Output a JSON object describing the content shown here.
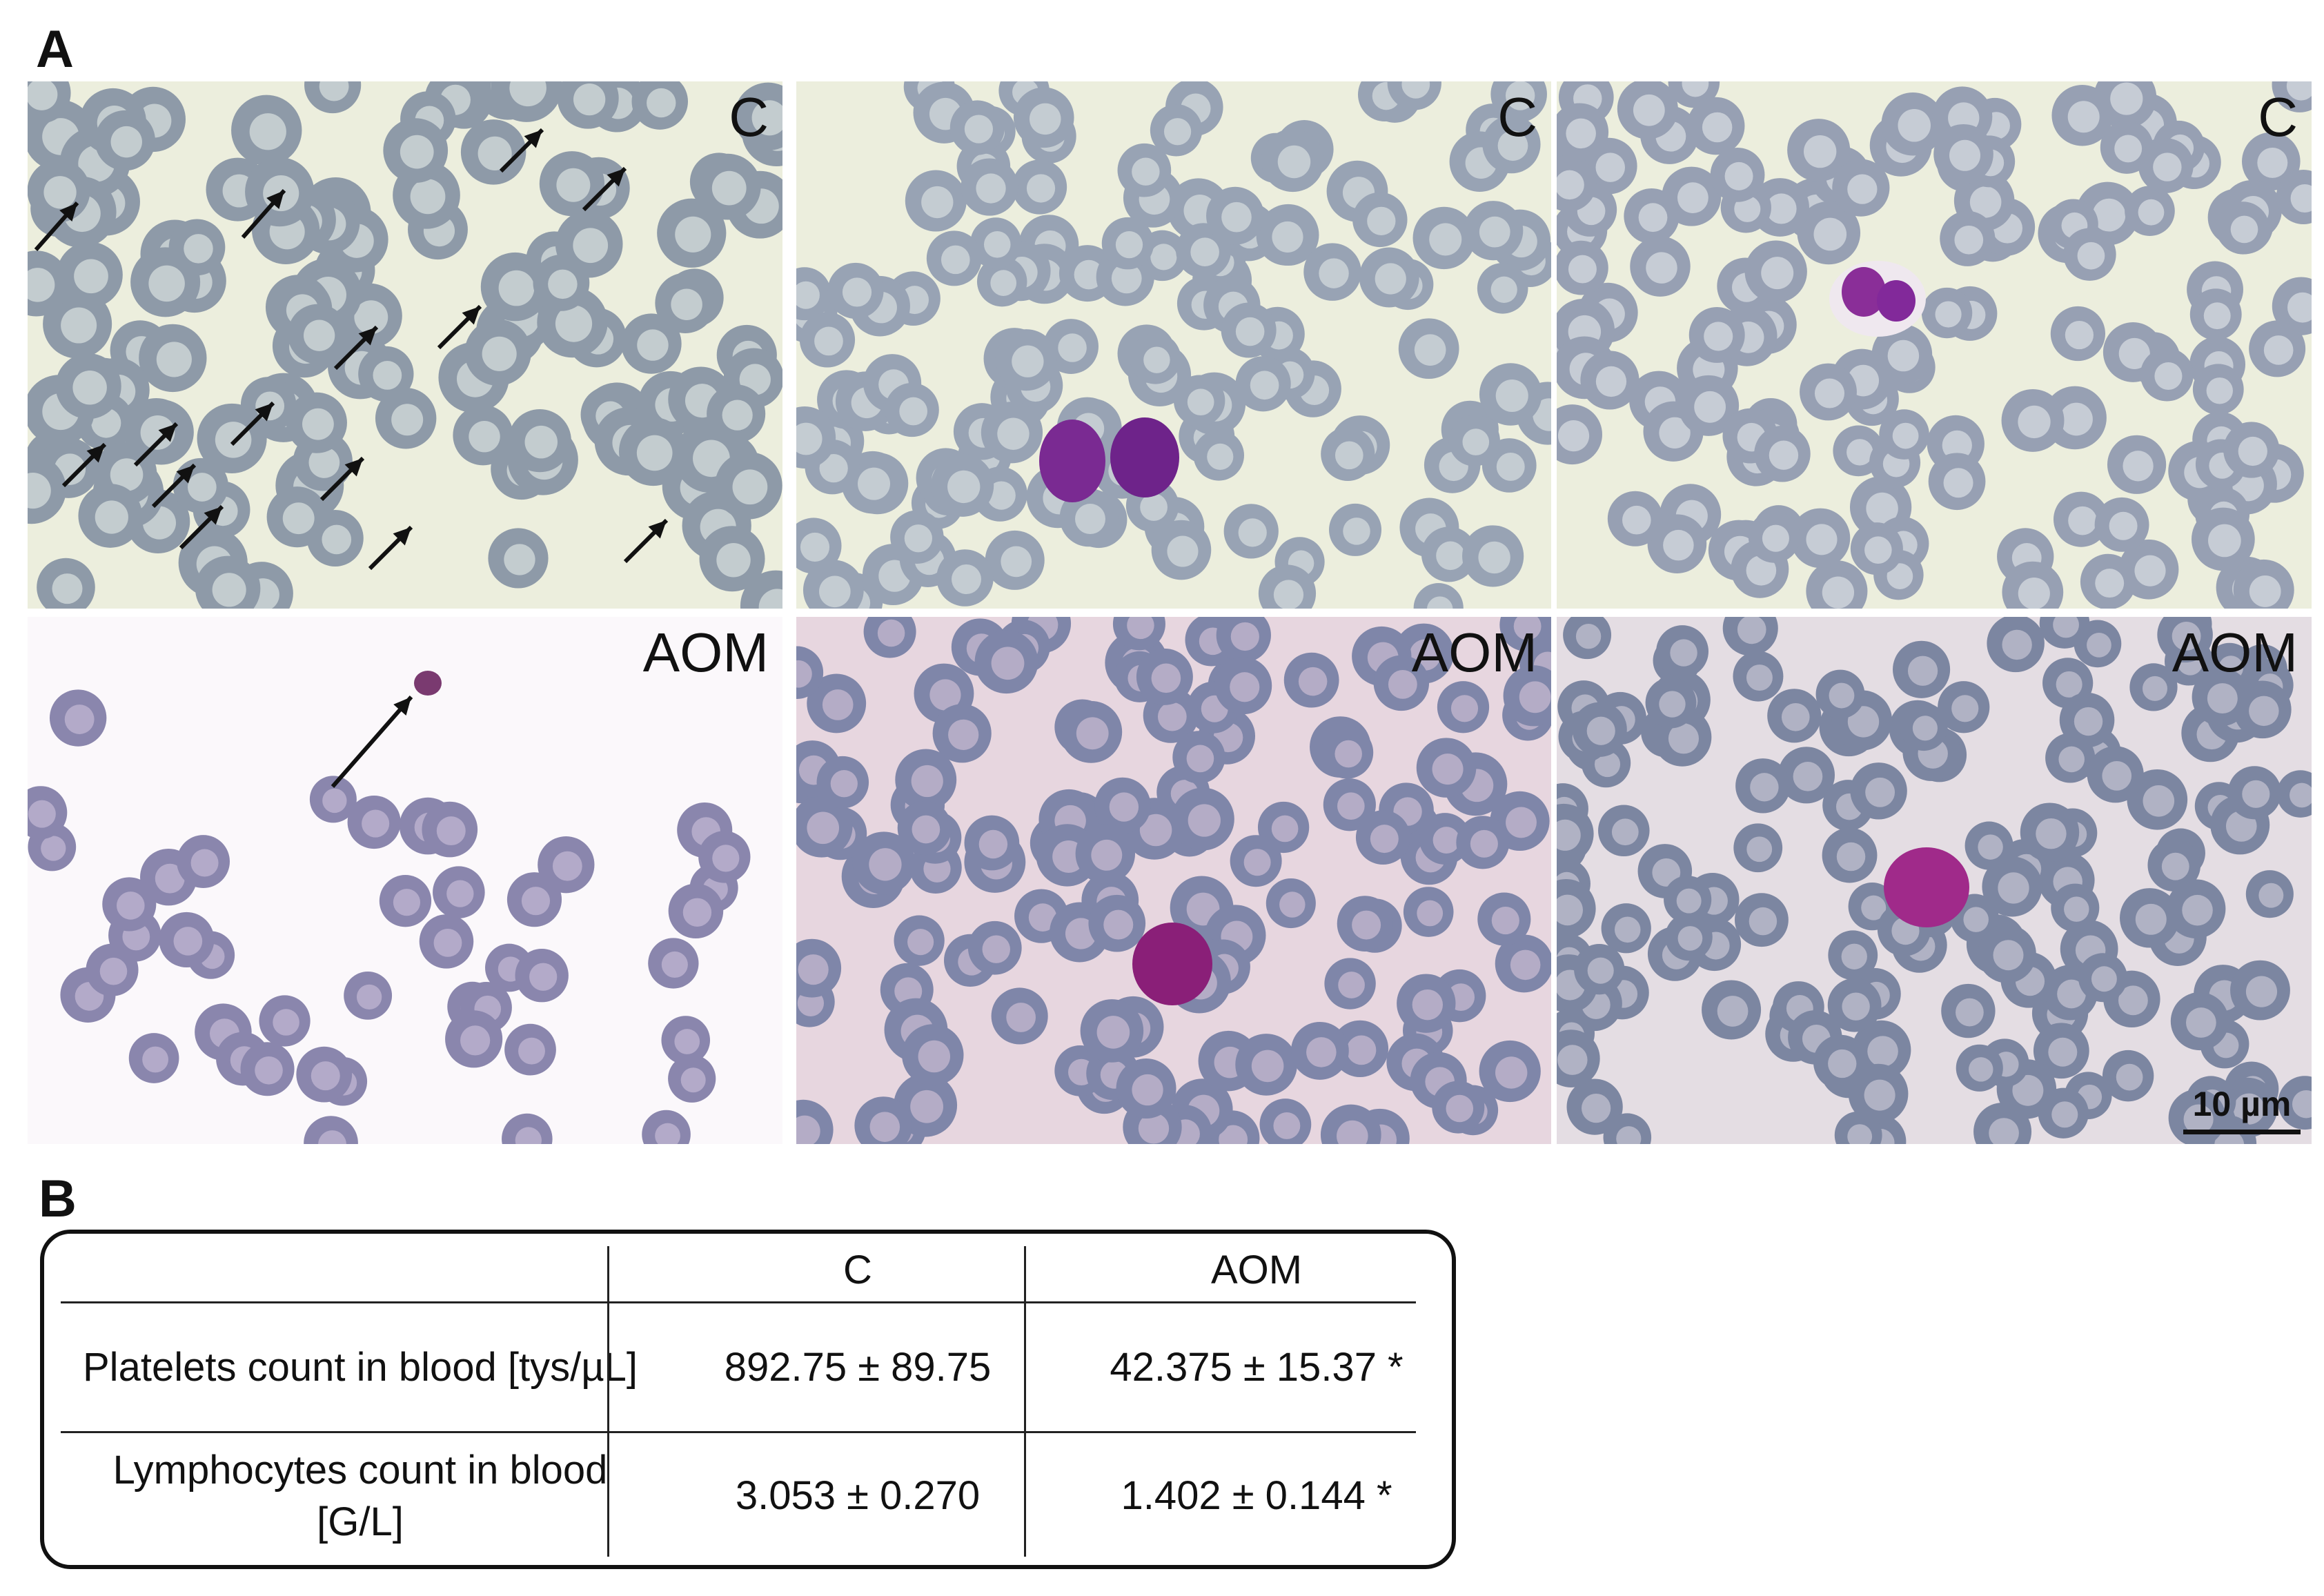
{
  "panel_a": {
    "letter": "A",
    "images": [
      {
        "label": "C"
      },
      {
        "label": "C"
      },
      {
        "label": "C"
      },
      {
        "label": "AOM"
      },
      {
        "label": "AOM"
      },
      {
        "label": "AOM"
      }
    ],
    "scale_bar": "10 µm"
  },
  "panel_b": {
    "letter": "B",
    "table": {
      "columns": [
        "",
        "C",
        "AOM"
      ],
      "rows": [
        {
          "label": "Platelets count in blood [tys/µL]",
          "c": "892.75 ± 89.75",
          "aom": "42.375 ± 15.37 *"
        },
        {
          "label": "Lymphocytes count in blood [G/L]",
          "c": "3.053 ± 0.270",
          "aom": "1.402 ± 0.144 *"
        }
      ]
    }
  }
}
